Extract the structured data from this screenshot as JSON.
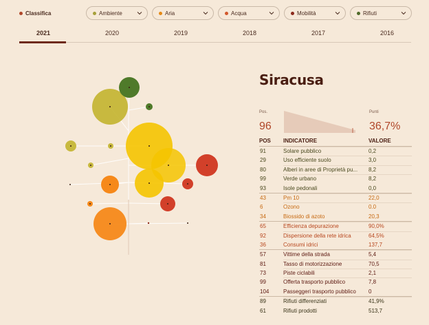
{
  "filters": {
    "classifica": {
      "label": "Classifica",
      "color": "#b0472a"
    },
    "items": [
      {
        "label": "Ambiente",
        "color": "#a6a03a"
      },
      {
        "label": "Aria",
        "color": "#e58a16"
      },
      {
        "label": "Acqua",
        "color": "#d2582b"
      },
      {
        "label": "Mobilità",
        "color": "#8c2a1c"
      },
      {
        "label": "Rifiuti",
        "color": "#4f6a2a"
      }
    ]
  },
  "years": [
    "2021",
    "2020",
    "2019",
    "2018",
    "2017",
    "2016"
  ],
  "selected_year": "2021",
  "city": "Siracusa",
  "summary": {
    "pos_label": "Pos.",
    "pos_value": "96",
    "score_label": "Punti",
    "score_value": "36,7%"
  },
  "table": {
    "headers": {
      "pos": "POS",
      "indicator": "INDICATORE",
      "value": "VALORE"
    },
    "groups": [
      {
        "category": "ambiente",
        "color": "#4b4a1f",
        "rows": [
          {
            "pos": "91",
            "indicator": "Solare pubblico",
            "value": "0,2"
          },
          {
            "pos": "29",
            "indicator": "Uso efficiente suolo",
            "value": "3,0"
          },
          {
            "pos": "80",
            "indicator": "Alberi in aree di Proprietà pu...",
            "value": "8,2"
          },
          {
            "pos": "99",
            "indicator": "Verde urbano",
            "value": "8,2"
          },
          {
            "pos": "93",
            "indicator": "Isole pedonali",
            "value": "0,0"
          }
        ]
      },
      {
        "category": "aria",
        "color": "#c76a12",
        "rows": [
          {
            "pos": "43",
            "indicator": "Pm 10",
            "value": "22,0"
          },
          {
            "pos": "6",
            "indicator": "Ozono",
            "value": "0.0"
          },
          {
            "pos": "34",
            "indicator": "Biossido di azoto",
            "value": "20,3"
          }
        ]
      },
      {
        "category": "acqua",
        "color": "#b8481f",
        "rows": [
          {
            "pos": "65",
            "indicator": "Efficienza depurazione",
            "value": "90,0%"
          },
          {
            "pos": "92",
            "indicator": "Dispersione della rete idrica",
            "value": "64,5%"
          },
          {
            "pos": "36",
            "indicator": "Consumi idrici",
            "value": "137,7"
          }
        ]
      },
      {
        "category": "mobilita",
        "color": "#5e1a12",
        "rows": [
          {
            "pos": "57",
            "indicator": "Vittime della strada",
            "value": "5,4"
          },
          {
            "pos": "81",
            "indicator": "Tasso di motorizzazione",
            "value": "70,5"
          },
          {
            "pos": "73",
            "indicator": "Piste ciclabili",
            "value": "2,1"
          },
          {
            "pos": "99",
            "indicator": "Offerta trasporto pubblico",
            "value": "7,8"
          },
          {
            "pos": "104",
            "indicator": "Passeggeri trasporto pubblico",
            "value": "0"
          }
        ]
      },
      {
        "category": "rifiuti",
        "color": "#3a3418",
        "rows": [
          {
            "pos": "89",
            "indicator": "Rifiuti differenziati",
            "value": "41,9%"
          },
          {
            "pos": "61",
            "indicator": "Rifiuti prodotti",
            "value": "513,7"
          }
        ]
      }
    ]
  }
}
